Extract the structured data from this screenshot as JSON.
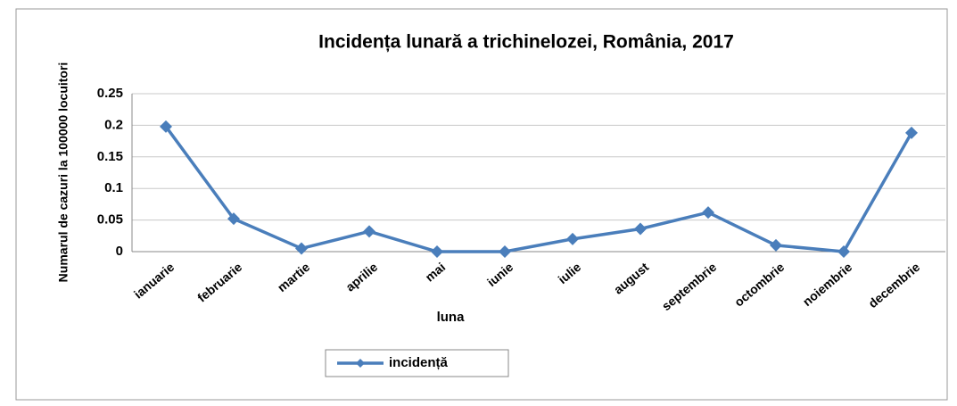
{
  "chart_data": {
    "type": "line",
    "title": "Incidența lunară a trichinelozei, România, 2017",
    "x_label": "luna",
    "y_label": "Numarul de cazuri la 100000 locuitori",
    "categories": [
      "ianuarie",
      "februarie",
      "martie",
      "aprilie",
      "mai",
      "iunie",
      "iulie",
      "august",
      "septembrie",
      "octombrie",
      "noiembrie",
      "decembrie"
    ],
    "series": [
      {
        "name": "incidență",
        "color": "#4a7ebb",
        "values": [
          0.198,
          0.052,
          0.005,
          0.032,
          0,
          0,
          0.02,
          0.036,
          0.062,
          0.01,
          0,
          0.188
        ]
      }
    ],
    "ylim": [
      0,
      0.25
    ],
    "yticks": [
      0,
      0.05,
      0.1,
      0.15,
      0.2,
      0.25
    ],
    "grid": true,
    "legend": "bottom"
  }
}
